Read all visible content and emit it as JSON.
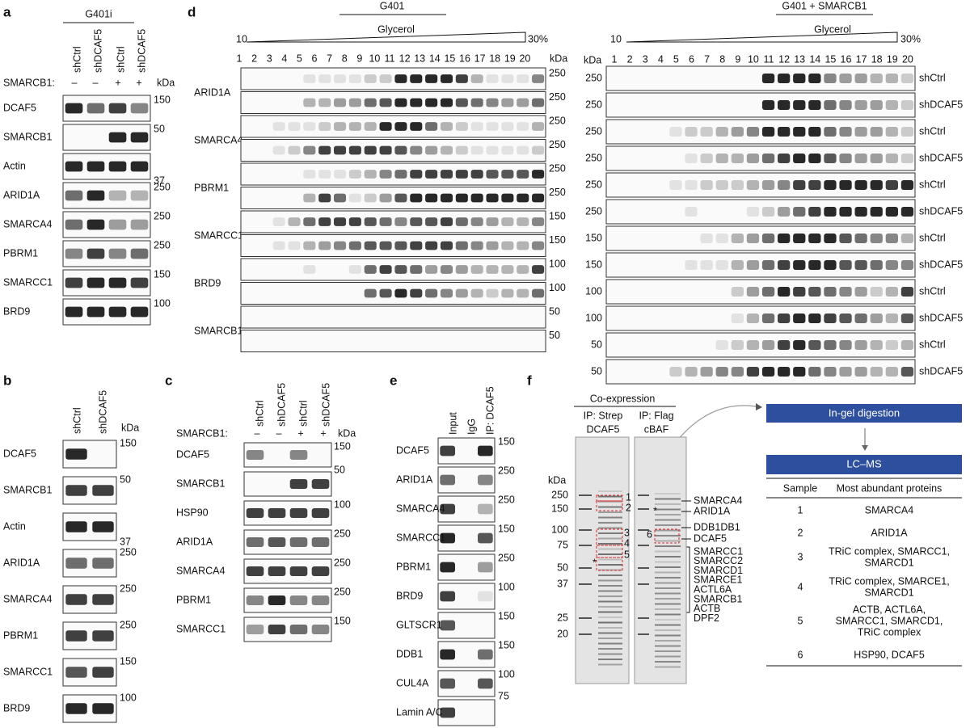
{
  "panels": {
    "a": {
      "label": "a",
      "header": "G401i",
      "lanes": [
        "shCtrl",
        "shDCAF5",
        "shCtrl",
        "shDCAF5"
      ],
      "smarcb1_label": "SMARCB1:",
      "smarcb1": [
        "–",
        "–",
        "+",
        "+"
      ],
      "kda": "kDa",
      "blots": [
        {
          "name": "DCAF5",
          "marker": 150
        },
        {
          "name": "SMARCB1",
          "marker": 50
        },
        {
          "name": "Actin",
          "marker": 37
        },
        {
          "name": "ARID1A",
          "marker": 250
        },
        {
          "name": "SMARCA4",
          "marker": 250
        },
        {
          "name": "PBRM1",
          "marker": 250
        },
        {
          "name": "SMARCC1",
          "marker": 150
        },
        {
          "name": "BRD9",
          "marker": 100
        }
      ]
    },
    "b": {
      "label": "b",
      "lanes": [
        "shCtrl",
        "shDCAF5"
      ],
      "kda": "kDa",
      "blots": [
        {
          "name": "DCAF5",
          "marker": 150
        },
        {
          "name": "SMARCB1",
          "marker": 50
        },
        {
          "name": "Actin",
          "marker": 37
        },
        {
          "name": "ARID1A",
          "marker": 250
        },
        {
          "name": "SMARCA4",
          "marker": 250
        },
        {
          "name": "PBRM1",
          "marker": 250
        },
        {
          "name": "SMARCC1",
          "marker": 150
        },
        {
          "name": "BRD9",
          "marker": 100
        }
      ]
    },
    "c": {
      "label": "c",
      "lanes": [
        "shCtrl",
        "shDCAF5",
        "shCtrl",
        "shDCAF5"
      ],
      "smarcb1_label": "SMARCB1:",
      "smarcb1": [
        "–",
        "–",
        "+",
        "+"
      ],
      "kda": "kDa",
      "blots": [
        {
          "name": "DCAF5",
          "marker": 150
        },
        {
          "name": "SMARCB1",
          "marker": 50
        },
        {
          "name": "HSP90",
          "marker": 100
        },
        {
          "name": "ARID1A",
          "marker": 250
        },
        {
          "name": "SMARCA4",
          "marker": 250
        },
        {
          "name": "PBRM1",
          "marker": 250
        },
        {
          "name": "SMARCC1",
          "marker": 150
        }
      ]
    },
    "d": {
      "label": "d",
      "left": {
        "header": "G401",
        "gradient_label": "Glycerol",
        "gradient_start": "10",
        "gradient_end": "30%",
        "fractions": [
          1,
          2,
          3,
          4,
          5,
          6,
          7,
          8,
          9,
          10,
          11,
          12,
          13,
          14,
          15,
          16,
          17,
          18,
          19,
          20
        ],
        "kda": "kDa",
        "proteins": [
          {
            "name": "ARID1A",
            "markers": [
              250,
              250
            ]
          },
          {
            "name": "SMARCA4",
            "markers": [
              250,
              250
            ]
          },
          {
            "name": "PBRM1",
            "markers": [
              250,
              250
            ]
          },
          {
            "name": "SMARCC1",
            "markers": [
              150,
              150
            ]
          },
          {
            "name": "BRD9",
            "markers": [
              100,
              100
            ]
          },
          {
            "name": "SMARCB1",
            "markers": [
              50,
              50
            ]
          }
        ]
      },
      "right": {
        "header": "G401 + SMARCB1",
        "gradient_label": "Glycerol",
        "gradient_start": "10",
        "gradient_end": "30%",
        "fractions": [
          1,
          2,
          3,
          4,
          5,
          6,
          7,
          8,
          9,
          10,
          11,
          12,
          13,
          14,
          15,
          16,
          17,
          18,
          19,
          20
        ],
        "kda": "kDa",
        "blots": [
          {
            "marker": 250,
            "condition": "shCtrl"
          },
          {
            "marker": 250,
            "condition": "shDCAF5"
          },
          {
            "marker": 250,
            "condition": "shCtrl"
          },
          {
            "marker": 250,
            "condition": "shDCAF5"
          },
          {
            "marker": 250,
            "condition": "shCtrl"
          },
          {
            "marker": 250,
            "condition": "shDCAF5"
          },
          {
            "marker": 150,
            "condition": "shCtrl"
          },
          {
            "marker": 150,
            "condition": "shDCAF5"
          },
          {
            "marker": 100,
            "condition": "shCtrl"
          },
          {
            "marker": 100,
            "condition": "shDCAF5"
          },
          {
            "marker": 50,
            "condition": "shCtrl"
          },
          {
            "marker": 50,
            "condition": "shDCAF5"
          }
        ]
      }
    },
    "e": {
      "label": "e",
      "lanes": [
        "Input",
        "IgG",
        "IP: DCAF5"
      ],
      "blots": [
        {
          "name": "DCAF5",
          "marker": 150
        },
        {
          "name": "ARID1A",
          "marker": 250
        },
        {
          "name": "SMARCA4",
          "marker": 250
        },
        {
          "name": "SMARCC1",
          "marker": 150
        },
        {
          "name": "PBRM1",
          "marker": 250
        },
        {
          "name": "BRD9",
          "marker": 100
        },
        {
          "name": "GLTSCR1",
          "marker": 150
        },
        {
          "name": "DDB1",
          "marker": 150
        },
        {
          "name": "CUL4A",
          "marker": 100
        },
        {
          "name": "Lamin A/C",
          "marker": 75
        }
      ]
    },
    "f": {
      "label": "f",
      "header": "Co-expression",
      "gel1": [
        "IP: Strep",
        "DCAF5"
      ],
      "gel2": [
        "IP: Flag",
        "cBAF"
      ],
      "kda": "kDa",
      "markers": [
        250,
        150,
        100,
        75,
        50,
        37,
        25,
        20
      ],
      "boxes": [
        "1",
        "2",
        "3",
        "4",
        "5",
        "6"
      ],
      "asterisks": [
        "*",
        "*"
      ],
      "bands": [
        "SMARCA4",
        "ARID1A",
        "DDB1DB1",
        "DCAF5"
      ],
      "complex": [
        "SMARCC1",
        "SMARCC2",
        "SMARCD1",
        "SMARCE1",
        "ACTL6A",
        "SMARCB1",
        "ACTB",
        "DPF2"
      ],
      "step1": "In-gel digestion",
      "step2": "LC–MS",
      "table": {
        "columns": [
          "Sample",
          "Most abundant proteins"
        ],
        "rows": [
          {
            "sample": "1",
            "proteins": [
              "SMARCA4"
            ]
          },
          {
            "sample": "2",
            "proteins": [
              "ARID1A"
            ]
          },
          {
            "sample": "3",
            "proteins": [
              "TRiC complex, SMARCC1,",
              "SMARCD1"
            ]
          },
          {
            "sample": "4",
            "proteins": [
              "TRiC complex, SMARCE1,",
              "SMARCD1"
            ]
          },
          {
            "sample": "5",
            "proteins": [
              "ACTB, ACTL6A,",
              "SMARCC1, SMARCD1,",
              "TRiC complex"
            ]
          },
          {
            "sample": "6",
            "proteins": [
              "HSP90, DCAF5"
            ]
          }
        ]
      }
    }
  }
}
